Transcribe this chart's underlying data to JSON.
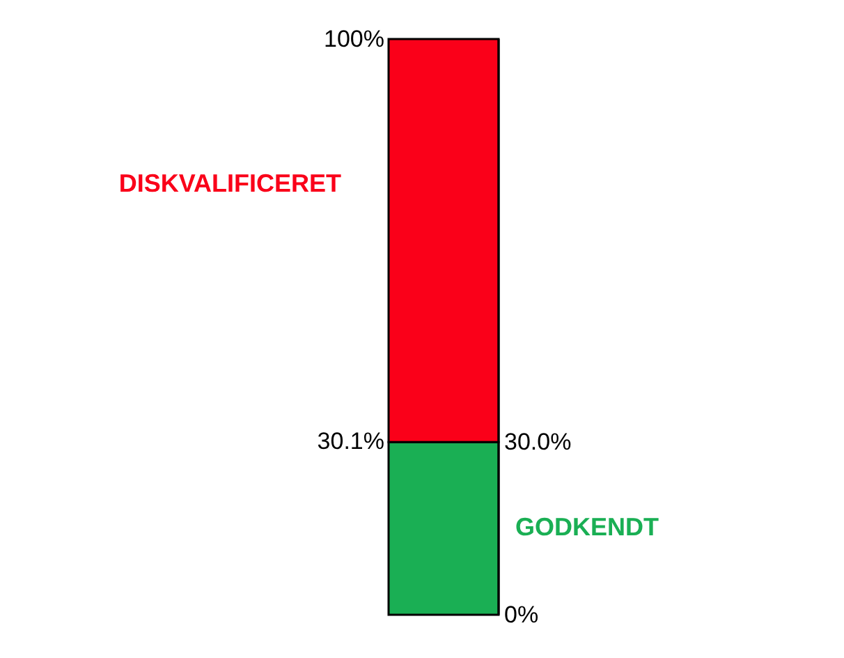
{
  "chart_data": {
    "type": "bar",
    "stacked": true,
    "categories": [
      null
    ],
    "series": [
      {
        "name": "GODKENDT",
        "color": "#1aaf54",
        "values": [
          30
        ]
      },
      {
        "name": "DISKVALIFICERET",
        "color": "#fa0019",
        "values": [
          70
        ]
      }
    ],
    "ylim": [
      0,
      100
    ],
    "yticks": [
      {
        "value": 100,
        "label": "100%"
      },
      {
        "value": 30.1,
        "label": "30.1%"
      }
    ],
    "y2lim": [
      0,
      100
    ],
    "y2ticks": [
      {
        "value": 30,
        "label": "30.0%"
      },
      {
        "value": 0,
        "label": "0%"
      }
    ],
    "tick_labels": "y",
    "legend": false
  }
}
